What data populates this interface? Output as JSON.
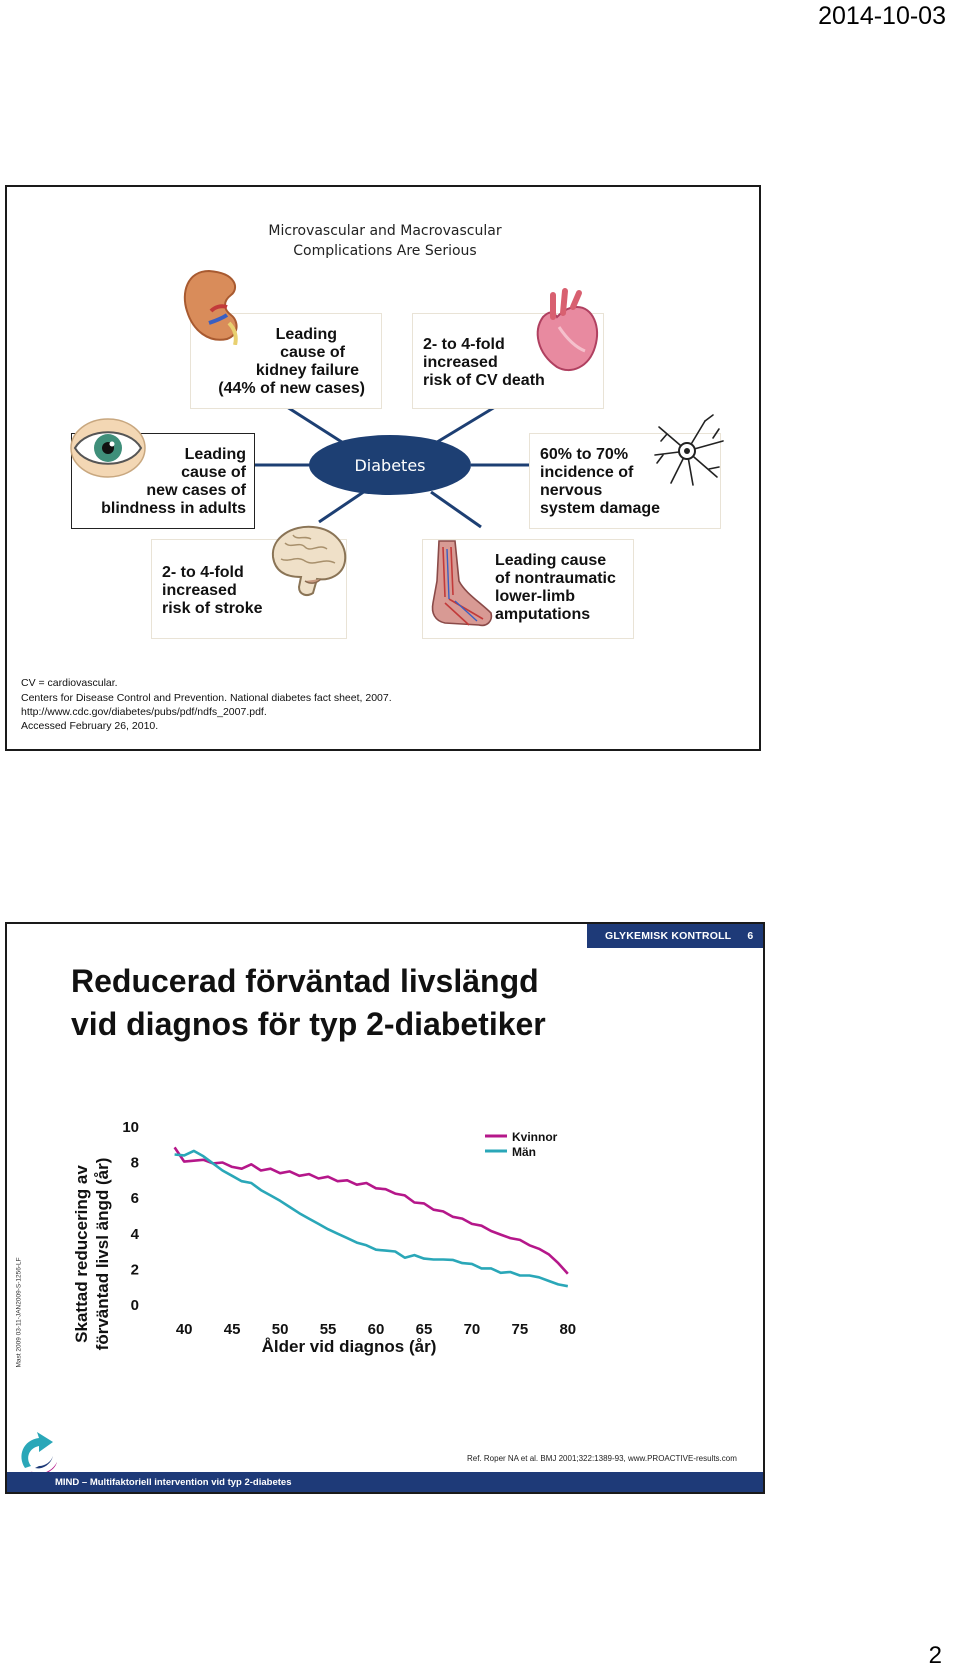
{
  "page": {
    "date": "2014-10-03",
    "number": "2"
  },
  "slide1": {
    "title_line1": "Microvascular and Macrovascular",
    "title_line2": "Complications Are Serious",
    "hub_label": "Diabetes",
    "boxes": [
      {
        "lines": [
          "Leading",
          "cause of",
          "kidney failure",
          "(44% of new cases)"
        ],
        "icon": "kidney-icon"
      },
      {
        "lines": [
          "2- to 4-fold",
          "increased",
          "risk of CV death"
        ],
        "icon": "heart-icon"
      },
      {
        "lines": [
          "Leading",
          "cause of",
          "new cases of",
          "blindness in adults"
        ],
        "icon": "eye-icon"
      },
      {
        "lines": [
          "60% to 70%",
          "incidence of",
          "nervous",
          "system damage"
        ],
        "icon": "neuron-icon"
      },
      {
        "lines": [
          "2- to 4-fold",
          "increased",
          "risk of stroke"
        ],
        "icon": "brain-icon"
      },
      {
        "lines": [
          "Leading cause",
          "of nontraumatic",
          "lower-limb",
          "amputations"
        ],
        "icon": "foot-icon"
      }
    ],
    "footnotes": [
      "CV = cardiovascular.",
      "Centers for Disease Control and Prevention. National diabetes fact sheet, 2007.",
      "http://www.cdc.gov/diabetes/pubs/pdf/ndfs_2007.pdf.",
      "Accessed February 26, 2010."
    ]
  },
  "slide2": {
    "tag_label": "GLYKEMISK KONTROLL",
    "tag_number": "6",
    "title_line1": "Reducerad förväntad livslängd",
    "title_line2": "vid diagnos för typ 2-diabetiker",
    "reference": "Ref. Roper NA et al. BMJ 2001;322:1389-93, www.PROACTIVE-results.com",
    "bottom_label": "MIND – Multifaktoriell intervention vid typ 2-diabetes",
    "side_code": "Mast 2009 03-11-JAN2009-S-1256-LF",
    "logo_icon": "swirl-logo-icon"
  },
  "chart_data": {
    "type": "line",
    "title": "",
    "xlabel": "Ålder vid diagnos (år)",
    "ylabel_line1": "Skattad reducering av",
    "ylabel_line2": "förväntad livsl ängd (år)",
    "xticks": [
      40,
      45,
      50,
      55,
      60,
      65,
      70,
      75,
      80
    ],
    "yticks": [
      0,
      2,
      4,
      6,
      8,
      10
    ],
    "xlim": [
      38,
      82
    ],
    "ylim": [
      0,
      10
    ],
    "grid": false,
    "legend_position": "top-right",
    "series": [
      {
        "name": "Kvinnor",
        "color": "#b5178a",
        "x": [
          39,
          40,
          41,
          42,
          43,
          44,
          45,
          46,
          47,
          48,
          49,
          50,
          51,
          52,
          53,
          54,
          55,
          56,
          57,
          58,
          59,
          60,
          61,
          62,
          63,
          64,
          65,
          66,
          67,
          68,
          69,
          70,
          71,
          72,
          73,
          74,
          75,
          76,
          77,
          78,
          79,
          80
        ],
        "y": [
          8.8,
          8.0,
          8.05,
          8.1,
          7.9,
          7.95,
          7.7,
          7.6,
          7.85,
          7.5,
          7.6,
          7.35,
          7.45,
          7.2,
          7.3,
          7.05,
          7.15,
          6.9,
          6.95,
          6.7,
          6.8,
          6.5,
          6.45,
          6.2,
          6.1,
          5.7,
          5.65,
          5.3,
          5.2,
          4.9,
          4.8,
          4.5,
          4.4,
          4.1,
          3.9,
          3.7,
          3.6,
          3.3,
          3.1,
          2.8,
          2.3,
          1.7
        ]
      },
      {
        "name": "Män",
        "color": "#2aa7b8",
        "x": [
          39,
          40,
          41,
          42,
          43,
          44,
          45,
          46,
          47,
          48,
          49,
          50,
          51,
          52,
          53,
          54,
          55,
          56,
          57,
          58,
          59,
          60,
          61,
          62,
          63,
          64,
          65,
          66,
          67,
          68,
          69,
          70,
          71,
          72,
          73,
          74,
          75,
          76,
          77,
          78,
          79,
          80
        ],
        "y": [
          8.4,
          8.35,
          8.6,
          8.3,
          7.9,
          7.5,
          7.2,
          6.9,
          6.8,
          6.4,
          6.1,
          5.8,
          5.45,
          5.1,
          4.8,
          4.5,
          4.2,
          3.95,
          3.7,
          3.45,
          3.3,
          3.05,
          3.0,
          2.95,
          2.6,
          2.75,
          2.55,
          2.5,
          2.5,
          2.48,
          2.3,
          2.25,
          2.0,
          2.0,
          1.75,
          1.8,
          1.6,
          1.6,
          1.5,
          1.3,
          1.1,
          1.0
        ]
      }
    ]
  }
}
